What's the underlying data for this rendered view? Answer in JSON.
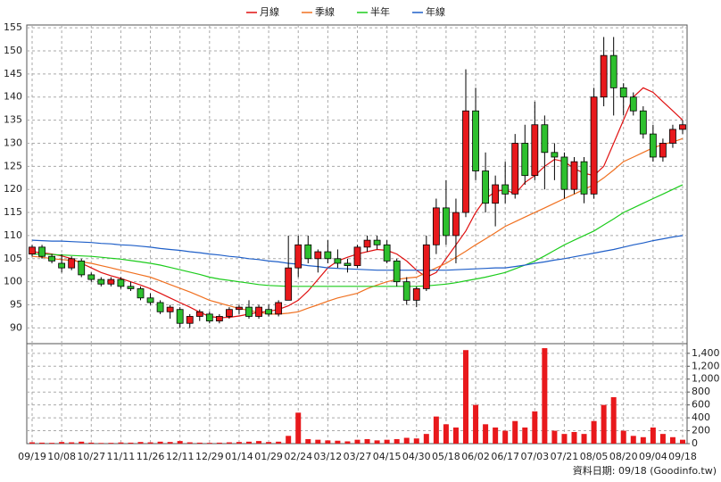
{
  "chart_data": {
    "type": "candlestick",
    "legend": "top-center",
    "grid": true,
    "up_color": "#e8191c",
    "down_color": "#2ec02e",
    "source_note": "資料日期: 09/18 (Goodinfo.tw)",
    "categories": [
      "09/19",
      null,
      null,
      "10/08",
      null,
      null,
      "10/27",
      null,
      null,
      "11/11",
      null,
      null,
      "11/26",
      null,
      null,
      "12/11",
      null,
      null,
      "12/29",
      null,
      null,
      "01/14",
      null,
      null,
      "01/29",
      null,
      null,
      "02/24",
      null,
      null,
      "03/12",
      null,
      null,
      "03/27",
      null,
      null,
      "04/15",
      null,
      null,
      "04/30",
      null,
      null,
      "05/18",
      null,
      null,
      "06/02",
      null,
      null,
      "06/17",
      null,
      null,
      "07/03",
      null,
      null,
      "07/21",
      null,
      null,
      "08/05",
      null,
      null,
      "08/20",
      null,
      null,
      "09/04",
      null,
      null,
      "09/18"
    ],
    "open": [
      106,
      107.5,
      105.5,
      104,
      103,
      104.5,
      101.5,
      100.5,
      99.5,
      100.5,
      99,
      98.5,
      96.5,
      95.5,
      93.5,
      94,
      91,
      92.5,
      93,
      91.5,
      92.5,
      94,
      94.5,
      92.5,
      94,
      93,
      96,
      103,
      108,
      105,
      106.5,
      105,
      104,
      103.5,
      107.5,
      109,
      108,
      104.5,
      100,
      96,
      98.5,
      108,
      116,
      110,
      115,
      137,
      124,
      117,
      121,
      119,
      130,
      123,
      134,
      128,
      127,
      120,
      126,
      119,
      140,
      149,
      142,
      140,
      137,
      132,
      127,
      130,
      133
    ],
    "high": [
      108,
      108,
      106,
      106,
      105.5,
      105,
      102,
      101,
      101,
      101,
      100,
      99,
      97.5,
      96,
      95,
      94.5,
      93,
      94,
      93.5,
      93,
      94.5,
      95,
      96,
      95,
      95,
      96,
      110,
      110,
      110,
      107,
      109,
      107,
      105,
      108,
      110,
      110,
      109,
      105,
      101,
      99,
      110,
      118,
      122,
      118,
      146,
      142,
      128,
      123,
      126,
      132,
      134,
      139,
      136,
      130,
      128,
      127,
      127,
      142,
      153,
      153,
      143,
      141,
      138,
      134,
      131,
      134,
      135
    ],
    "low": [
      105.5,
      105,
      104,
      102,
      102.5,
      101,
      100,
      99,
      99,
      98.5,
      98,
      96,
      95,
      93,
      92,
      90,
      90,
      91.5,
      91,
      91,
      92,
      93,
      92,
      92,
      92.5,
      92.5,
      96,
      101,
      104,
      102,
      104,
      103,
      102,
      103,
      106.5,
      107,
      104,
      99,
      95,
      94.5,
      98,
      106,
      108,
      104,
      114,
      122,
      115,
      112,
      117,
      118,
      121,
      122,
      120,
      122,
      118,
      119,
      117,
      118,
      138,
      136,
      136,
      136,
      131,
      126,
      126,
      129,
      132
    ],
    "close": [
      107.5,
      105.5,
      104.5,
      103,
      105,
      101.5,
      100.5,
      99.5,
      100.5,
      99,
      98.5,
      96.5,
      95.5,
      93.5,
      94.5,
      91,
      92.5,
      93.5,
      91.5,
      92.5,
      94,
      94.5,
      92.5,
      94.5,
      93,
      95.5,
      103,
      108,
      105,
      106.5,
      105,
      104,
      103.5,
      107.5,
      109,
      108,
      104.5,
      100,
      96,
      98.5,
      108,
      116,
      110,
      115,
      137,
      124,
      117,
      121,
      119,
      130,
      123,
      134,
      128,
      127,
      120,
      126,
      119,
      140,
      149,
      142,
      140,
      137,
      132,
      127,
      130,
      133,
      134
    ],
    "ylim": [
      86.6,
      155.6
    ],
    "yticks": [
      90,
      95,
      100,
      105,
      110,
      115,
      120,
      125,
      130,
      135,
      140,
      145,
      150,
      155
    ],
    "series": [
      {
        "name": "月線",
        "color": "#e01010",
        "values": [
          106.5,
          106.3,
          106,
          105.6,
          105,
          104,
          103,
          102,
          101.3,
          100.7,
          100,
          99.3,
          98.5,
          97.5,
          96.5,
          95.5,
          94.5,
          93.4,
          92.5,
          92.2,
          92.3,
          92.6,
          93,
          93.4,
          93.6,
          94,
          94.8,
          96,
          98,
          100.5,
          103,
          104.5,
          105.3,
          106,
          106.5,
          107,
          106.8,
          106,
          104.5,
          102.5,
          101,
          102,
          105,
          108,
          111,
          115,
          118,
          119.5,
          120,
          119,
          121.5,
          123,
          125,
          126.5,
          126,
          124.5,
          123.5,
          123,
          125,
          130,
          135,
          140,
          142,
          141,
          139,
          137,
          135
        ]
      },
      {
        "name": "季線",
        "color": "#f07020",
        "values": [
          105.5,
          105.3,
          105,
          104.8,
          104.6,
          104.3,
          104,
          103.5,
          103,
          102.5,
          102,
          101.5,
          101,
          100.2,
          99.4,
          98.6,
          97.8,
          96.9,
          96,
          95.4,
          94.8,
          94.2,
          93.8,
          93.4,
          93,
          93,
          93.2,
          93.5,
          94.3,
          95,
          95.8,
          96.5,
          97,
          97.5,
          98.5,
          99.3,
          100,
          100.5,
          100.8,
          101,
          102,
          103,
          104,
          105.3,
          106.6,
          108,
          109.3,
          110.6,
          112,
          113,
          114,
          115,
          116,
          117,
          118,
          119,
          120,
          121,
          122.5,
          124.2,
          126,
          127,
          128,
          129,
          129.7,
          130.3,
          131
        ]
      },
      {
        "name": "半年",
        "color": "#1ccc1c",
        "values": [
          106,
          106,
          105.9,
          105.8,
          105.7,
          105.6,
          105.5,
          105.3,
          105.1,
          104.9,
          104.6,
          104.3,
          104,
          103.6,
          103.1,
          102.6,
          102.1,
          101.6,
          101,
          100.6,
          100.3,
          100,
          99.7,
          99.4,
          99.2,
          99.1,
          99,
          99,
          99,
          99,
          99,
          99,
          99,
          99,
          99,
          99,
          99,
          99,
          99,
          99,
          99.1,
          99.3,
          99.5,
          99.8,
          100.2,
          100.6,
          101,
          101.5,
          102,
          102.8,
          103.6,
          104.5,
          105.6,
          106.8,
          108,
          109,
          110,
          111,
          112.3,
          113.6,
          115,
          116,
          117,
          118,
          119,
          120,
          121
        ]
      },
      {
        "name": "年線",
        "color": "#1f5fc8",
        "values": [
          109,
          108.9,
          108.8,
          108.8,
          108.7,
          108.6,
          108.5,
          108.3,
          108.2,
          108,
          107.9,
          107.7,
          107.5,
          107.2,
          107,
          106.8,
          106.5,
          106.3,
          106,
          105.8,
          105.5,
          105.3,
          105,
          104.8,
          104.5,
          104.3,
          104,
          103.8,
          103.5,
          103.3,
          103,
          102.9,
          102.8,
          102.7,
          102.6,
          102.5,
          102.5,
          102.5,
          102.5,
          102.5,
          102.5,
          102.5,
          102.5,
          102.6,
          102.7,
          102.8,
          102.9,
          103,
          103,
          103.3,
          103.6,
          104,
          104.3,
          104.7,
          105,
          105.4,
          105.8,
          106.2,
          106.6,
          107,
          107.5,
          108,
          108.4,
          108.9,
          109.3,
          109.7,
          110
        ]
      }
    ],
    "volume": {
      "color": "#e8191c",
      "values": [
        20,
        15,
        12,
        25,
        20,
        30,
        15,
        10,
        12,
        18,
        15,
        25,
        20,
        30,
        25,
        40,
        20,
        15,
        12,
        15,
        20,
        25,
        30,
        40,
        25,
        30,
        120,
        480,
        70,
        60,
        50,
        45,
        35,
        60,
        70,
        50,
        60,
        70,
        90,
        80,
        150,
        420,
        300,
        250,
        1450,
        600,
        300,
        250,
        200,
        350,
        250,
        500,
        1480,
        200,
        150,
        180,
        150,
        350,
        600,
        720,
        200,
        120,
        100,
        250,
        150,
        100,
        60
      ],
      "ylim": [
        0,
        1550
      ],
      "yticks": [
        0,
        200,
        400,
        600,
        800,
        {
          "value": 1000,
          "label": "1,000"
        },
        {
          "value": 1200,
          "label": "1,200"
        },
        {
          "value": 1400,
          "label": "1,400"
        }
      ]
    }
  }
}
